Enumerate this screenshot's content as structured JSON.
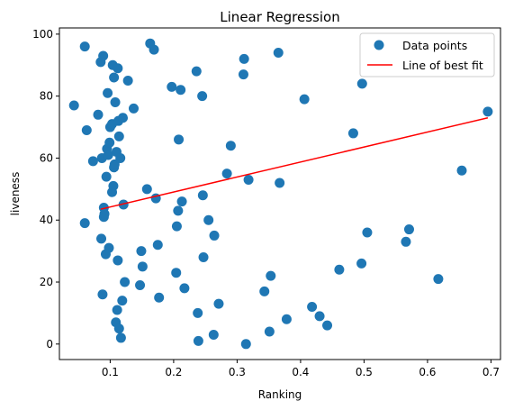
{
  "chart_data": {
    "type": "scatter",
    "title": "Linear Regression",
    "xlabel": "Ranking",
    "ylabel": "liveness",
    "xlim": [
      0.02,
      0.715
    ],
    "ylim": [
      -5,
      102
    ],
    "xticks": [
      0.1,
      0.2,
      0.3,
      0.4,
      0.5,
      0.6,
      0.7
    ],
    "yticks": [
      0,
      20,
      40,
      60,
      80,
      100
    ],
    "xtick_labels": [
      "0.1",
      "0.2",
      "0.3",
      "0.4",
      "0.5",
      "0.6",
      "0.7"
    ],
    "ytick_labels": [
      "0",
      "20",
      "40",
      "60",
      "80",
      "100"
    ],
    "grid": false,
    "legend_position": "top-right",
    "series": [
      {
        "name": "Data points",
        "kind": "scatter",
        "color": "#1f77b4",
        "points": [
          [
            0.043,
            77
          ],
          [
            0.06,
            96
          ],
          [
            0.063,
            69
          ],
          [
            0.06,
            39
          ],
          [
            0.073,
            59
          ],
          [
            0.081,
            74
          ],
          [
            0.085,
            91
          ],
          [
            0.086,
            34
          ],
          [
            0.087,
            60
          ],
          [
            0.088,
            16
          ],
          [
            0.089,
            93
          ],
          [
            0.09,
            41
          ],
          [
            0.09,
            44
          ],
          [
            0.091,
            42
          ],
          [
            0.093,
            29
          ],
          [
            0.094,
            54
          ],
          [
            0.095,
            63
          ],
          [
            0.096,
            81
          ],
          [
            0.097,
            61
          ],
          [
            0.098,
            31
          ],
          [
            0.099,
            65
          ],
          [
            0.1,
            70
          ],
          [
            0.103,
            71
          ],
          [
            0.103,
            49
          ],
          [
            0.104,
            90
          ],
          [
            0.105,
            51
          ],
          [
            0.106,
            57
          ],
          [
            0.106,
            86
          ],
          [
            0.107,
            58
          ],
          [
            0.108,
            78
          ],
          [
            0.109,
            7
          ],
          [
            0.11,
            62
          ],
          [
            0.111,
            11
          ],
          [
            0.112,
            27
          ],
          [
            0.112,
            89
          ],
          [
            0.113,
            72
          ],
          [
            0.114,
            5
          ],
          [
            0.114,
            67
          ],
          [
            0.116,
            60
          ],
          [
            0.117,
            2
          ],
          [
            0.119,
            14
          ],
          [
            0.12,
            73
          ],
          [
            0.121,
            45
          ],
          [
            0.123,
            20
          ],
          [
            0.128,
            85
          ],
          [
            0.137,
            76
          ],
          [
            0.147,
            19
          ],
          [
            0.149,
            30
          ],
          [
            0.151,
            25
          ],
          [
            0.158,
            50
          ],
          [
            0.163,
            97
          ],
          [
            0.169,
            95
          ],
          [
            0.172,
            47
          ],
          [
            0.175,
            32
          ],
          [
            0.177,
            15
          ],
          [
            0.197,
            83
          ],
          [
            0.204,
            23
          ],
          [
            0.205,
            38
          ],
          [
            0.207,
            43
          ],
          [
            0.208,
            66
          ],
          [
            0.211,
            82
          ],
          [
            0.213,
            46
          ],
          [
            0.217,
            18
          ],
          [
            0.236,
            88
          ],
          [
            0.238,
            10
          ],
          [
            0.239,
            1
          ],
          [
            0.245,
            80
          ],
          [
            0.246,
            48
          ],
          [
            0.247,
            28
          ],
          [
            0.255,
            40
          ],
          [
            0.263,
            3
          ],
          [
            0.264,
            35
          ],
          [
            0.271,
            13
          ],
          [
            0.284,
            55
          ],
          [
            0.29,
            64
          ],
          [
            0.31,
            87
          ],
          [
            0.311,
            92
          ],
          [
            0.314,
            0
          ],
          [
            0.318,
            53
          ],
          [
            0.343,
            17
          ],
          [
            0.351,
            4
          ],
          [
            0.353,
            22
          ],
          [
            0.365,
            94
          ],
          [
            0.367,
            52
          ],
          [
            0.378,
            8
          ],
          [
            0.406,
            79
          ],
          [
            0.418,
            12
          ],
          [
            0.43,
            9
          ],
          [
            0.442,
            6
          ],
          [
            0.461,
            24
          ],
          [
            0.483,
            68
          ],
          [
            0.497,
            84
          ],
          [
            0.496,
            26
          ],
          [
            0.505,
            36
          ],
          [
            0.566,
            33
          ],
          [
            0.571,
            37
          ],
          [
            0.617,
            21
          ],
          [
            0.654,
            56
          ],
          [
            0.695,
            75
          ]
        ]
      },
      {
        "name": "Line of best fit",
        "kind": "line",
        "color": "#ff0000",
        "x": [
          0.085,
          0.695
        ],
        "y": [
          43.5,
          73
        ]
      }
    ]
  }
}
